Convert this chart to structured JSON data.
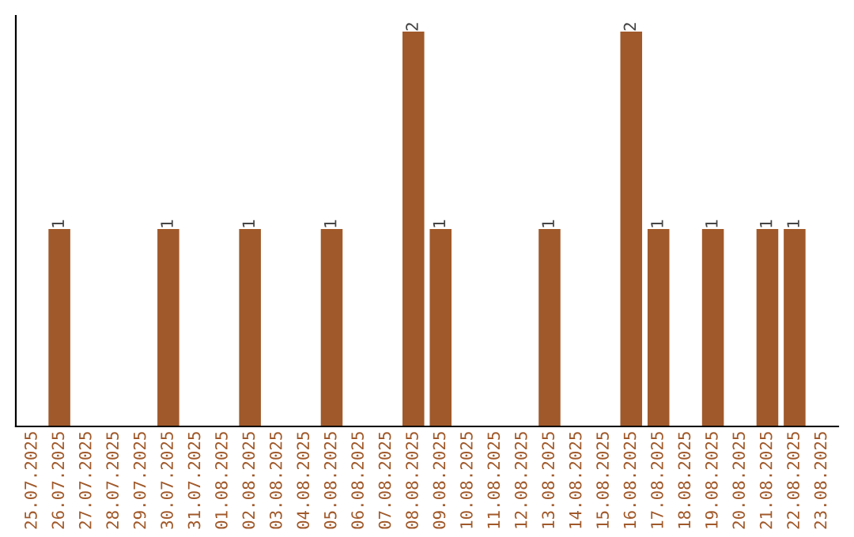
{
  "chart_data": {
    "type": "bar",
    "categories": [
      "25.07.2025",
      "26.07.2025",
      "27.07.2025",
      "28.07.2025",
      "29.07.2025",
      "30.07.2025",
      "31.07.2025",
      "01.08.2025",
      "02.08.2025",
      "03.08.2025",
      "04.08.2025",
      "05.08.2025",
      "06.08.2025",
      "07.08.2025",
      "08.08.2025",
      "09.08.2025",
      "10.08.2025",
      "11.08.2025",
      "12.08.2025",
      "13.08.2025",
      "14.08.2025",
      "15.08.2025",
      "16.08.2025",
      "17.08.2025",
      "18.08.2025",
      "19.08.2025",
      "20.08.2025",
      "21.08.2025",
      "22.08.2025",
      "23.08.2025"
    ],
    "values": [
      0,
      1,
      0,
      0,
      0,
      1,
      0,
      0,
      1,
      0,
      0,
      1,
      0,
      0,
      2,
      1,
      0,
      0,
      0,
      1,
      0,
      0,
      2,
      1,
      0,
      1,
      0,
      1,
      1,
      0
    ],
    "value_labels": [
      null,
      "1",
      null,
      null,
      null,
      "1",
      null,
      null,
      "1",
      null,
      null,
      "1",
      null,
      null,
      "2",
      "1",
      null,
      null,
      null,
      "1",
      null,
      null,
      "2",
      "1",
      null,
      "1",
      null,
      "1",
      "1",
      null
    ],
    "color": "#a0592a",
    "grid": false,
    "legend": false
  }
}
